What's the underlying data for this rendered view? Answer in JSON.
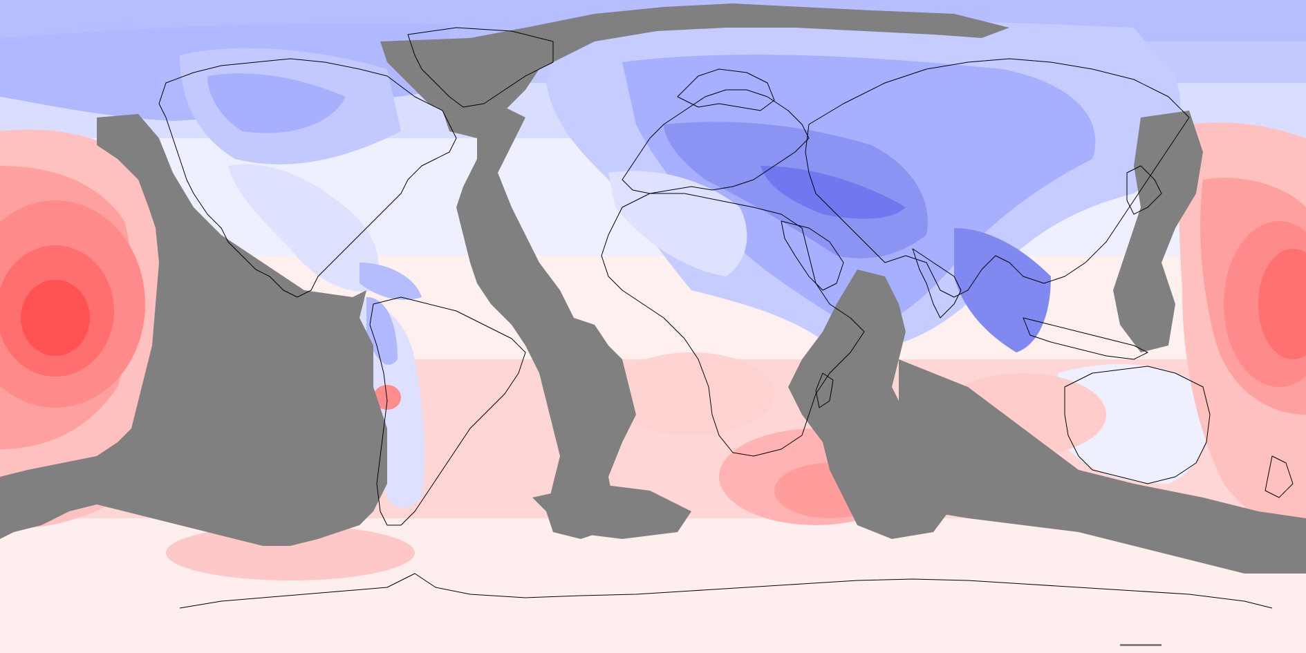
{
  "map": {
    "projection": "equirectangular",
    "colors": {
      "warm_max": "#ff5252",
      "warm_2": "#ff7f7f",
      "warm_3": "#ffa8a8",
      "warm_4": "#ffc8c8",
      "warm_5": "#ffe3e3",
      "neutral": "#f7f4ff",
      "cool_1": "#e3e6ff",
      "cool_2": "#c6ccff",
      "cool_3": "#a7afff",
      "cool_4": "#8a94f2",
      "cool_max": "#6f78ee",
      "mask_gray": "#808080",
      "coastline": "#000000"
    }
  }
}
